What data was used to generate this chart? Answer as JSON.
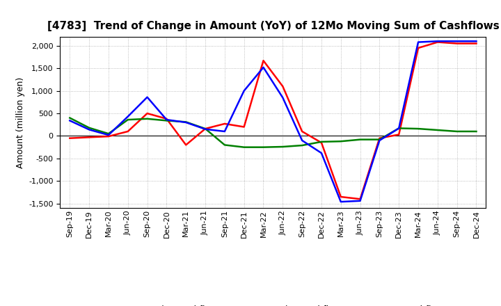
{
  "title": "[4783]  Trend of Change in Amount (YoY) of 12Mo Moving Sum of Cashflows",
  "ylabel": "Amount (million yen)",
  "x_labels": [
    "Sep-19",
    "Dec-19",
    "Mar-20",
    "Jun-20",
    "Sep-20",
    "Dec-20",
    "Mar-21",
    "Jun-21",
    "Sep-21",
    "Dec-21",
    "Mar-22",
    "Jun-22",
    "Sep-22",
    "Dec-22",
    "Mar-23",
    "Jun-23",
    "Sep-23",
    "Dec-23",
    "Mar-24",
    "Jun-24",
    "Sep-24",
    "Dec-24"
  ],
  "operating_cashflow": [
    -50,
    -30,
    -10,
    100,
    500,
    380,
    -200,
    160,
    270,
    200,
    1670,
    1100,
    100,
    -150,
    -1350,
    -1400,
    -50,
    30,
    1950,
    2080,
    2050,
    2050
  ],
  "investing_cashflow": [
    400,
    180,
    50,
    360,
    380,
    340,
    310,
    160,
    -200,
    -250,
    -250,
    -240,
    -210,
    -130,
    -120,
    -80,
    -80,
    170,
    160,
    130,
    100,
    100
  ],
  "free_cashflow": [
    340,
    140,
    20,
    430,
    860,
    360,
    300,
    150,
    100,
    1000,
    1520,
    850,
    -100,
    -380,
    -1460,
    -1440,
    -100,
    170,
    2080,
    2100,
    2100,
    2100
  ],
  "ylim": [
    -1600,
    2200
  ],
  "yticks": [
    -1500,
    -1000,
    -500,
    0,
    500,
    1000,
    1500,
    2000
  ],
  "operating_color": "#FF0000",
  "investing_color": "#008000",
  "free_color": "#0000FF",
  "line_width": 1.8,
  "background_color": "#FFFFFF",
  "grid_color": "#AAAAAA",
  "grid_linestyle": ":",
  "title_fontsize": 11,
  "axis_fontsize": 8,
  "ylabel_fontsize": 9,
  "legend_fontsize": 9
}
